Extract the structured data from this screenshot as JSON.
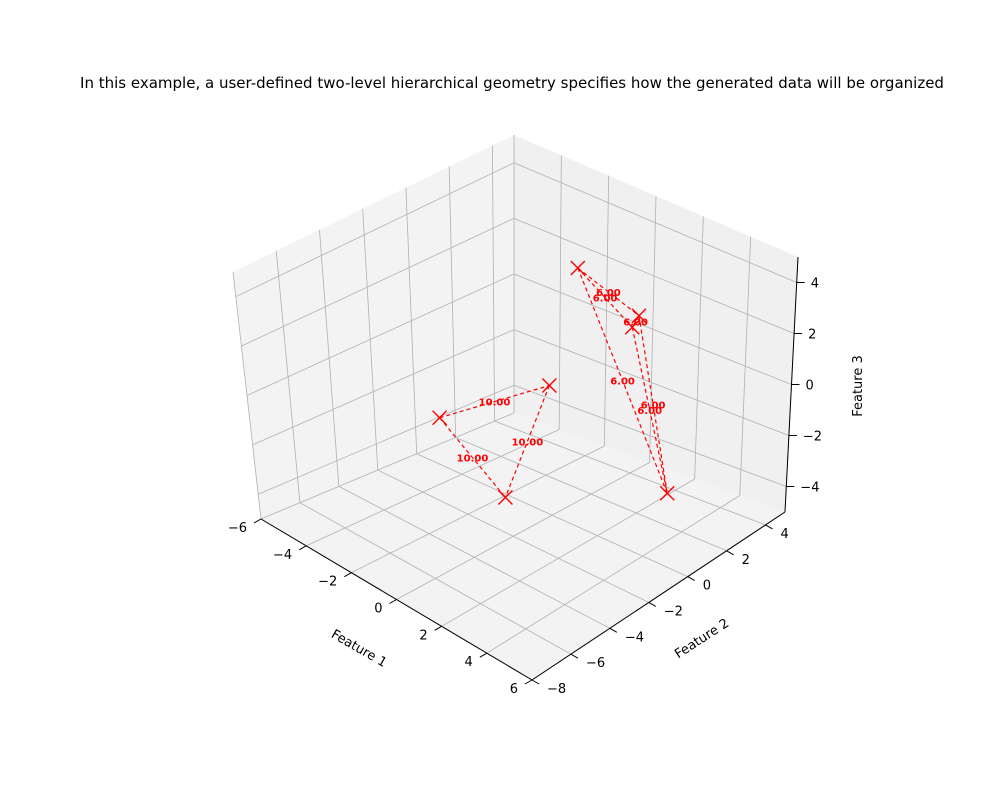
{
  "chart_data": {
    "type": "scatter",
    "title": "In this example, a user-defined two-level hierarchical geometry specifies how the generated data will be organized",
    "xlabel": "Feature 1",
    "ylabel": "Feature 2",
    "zlabel": "Feature 3",
    "x_ticks": [
      "−6",
      "−4",
      "−2",
      "0",
      "2",
      "4",
      "6"
    ],
    "y_ticks": [
      "−8",
      "−6",
      "−4",
      "−2",
      "0",
      "2",
      "4"
    ],
    "z_ticks": [
      "−4",
      "−2",
      "0",
      "2",
      "4"
    ],
    "xlim": [
      -6,
      6
    ],
    "ylim": [
      -8,
      5
    ],
    "zlim": [
      -5,
      5
    ],
    "grid": true,
    "marker": "x",
    "color": "#ff0000",
    "points": [
      {
        "x": -4.0,
        "y": -1.0,
        "z": -2.5
      },
      {
        "x": 3.5,
        "y": -6.0,
        "z": 0.0
      },
      {
        "x": 0.0,
        "y": 0.0,
        "z": 0.0
      },
      {
        "x": -1.0,
        "y": 2.5,
        "z": 3.0
      },
      {
        "x": 3.0,
        "y": 1.0,
        "z": 3.5
      },
      {
        "x": 0.0,
        "y": 4.0,
        "z": 0.5
      },
      {
        "x": 2.5,
        "y": 3.0,
        "z": -4.5
      }
    ],
    "segments": [
      {
        "from": 0,
        "to": 1,
        "label": "10.00"
      },
      {
        "from": 0,
        "to": 2,
        "label": "10.00"
      },
      {
        "from": 2,
        "to": 1,
        "label": "10.00"
      },
      {
        "from": 3,
        "to": 4,
        "label": "6.00"
      },
      {
        "from": 3,
        "to": 5,
        "label": "6.00"
      },
      {
        "from": 4,
        "to": 5,
        "label": "6.00"
      },
      {
        "from": 3,
        "to": 6,
        "label": "6.00"
      },
      {
        "from": 4,
        "to": 6,
        "label": "6.00"
      },
      {
        "from": 5,
        "to": 6,
        "label": "6.00"
      }
    ]
  }
}
